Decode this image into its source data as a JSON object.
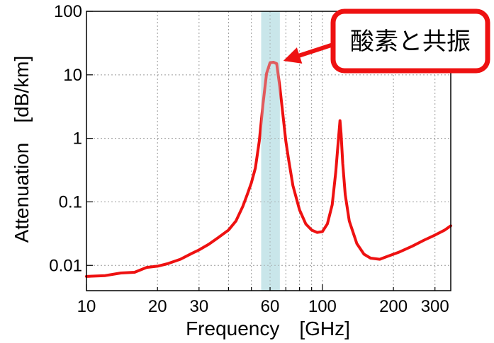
{
  "chart_data": {
    "type": "line",
    "xlabel": "Frequency　[GHz]",
    "ylabel": "Attenuation　[dB/km]",
    "xscale": "log",
    "yscale": "log",
    "xlim": [
      10,
      350
    ],
    "ylim": [
      0.004,
      100
    ],
    "grid": true,
    "x_tick_labels": [
      {
        "value": 10,
        "label": "10"
      },
      {
        "value": 20,
        "label": "20"
      },
      {
        "value": 30,
        "label": "30"
      },
      {
        "value": 60,
        "label": "60"
      },
      {
        "value": 100,
        "label": "100"
      },
      {
        "value": 200,
        "label": "200"
      },
      {
        "value": 300,
        "label": "300"
      }
    ],
    "y_tick_labels": [
      {
        "value": 0.01,
        "label": "0.01"
      },
      {
        "value": 0.1,
        "label": "0.1"
      },
      {
        "value": 1,
        "label": "1"
      },
      {
        "value": 10,
        "label": "10"
      },
      {
        "value": 100,
        "label": "100"
      }
    ],
    "highlight_band": {
      "x_range": [
        55,
        66
      ],
      "color": "#c9e6ea"
    },
    "series": [
      {
        "color": "#ee1111",
        "points": [
          [
            10,
            0.0067
          ],
          [
            12,
            0.0069
          ],
          [
            14,
            0.0076
          ],
          [
            16,
            0.0078
          ],
          [
            18,
            0.0093
          ],
          [
            20,
            0.0097
          ],
          [
            22,
            0.0106
          ],
          [
            25,
            0.0125
          ],
          [
            28,
            0.0155
          ],
          [
            30,
            0.0175
          ],
          [
            33,
            0.0215
          ],
          [
            36,
            0.027
          ],
          [
            40,
            0.036
          ],
          [
            43,
            0.05
          ],
          [
            46,
            0.085
          ],
          [
            48,
            0.13
          ],
          [
            50,
            0.2
          ],
          [
            52,
            0.34
          ],
          [
            54,
            0.9
          ],
          [
            56,
            3.5
          ],
          [
            58,
            10.5
          ],
          [
            60,
            15.5
          ],
          [
            62,
            15.8
          ],
          [
            64,
            15.0
          ],
          [
            66,
            6.5
          ],
          [
            68,
            2.4
          ],
          [
            70,
            0.9
          ],
          [
            72,
            0.45
          ],
          [
            75,
            0.18
          ],
          [
            80,
            0.075
          ],
          [
            85,
            0.045
          ],
          [
            90,
            0.036
          ],
          [
            95,
            0.033
          ],
          [
            100,
            0.034
          ],
          [
            105,
            0.045
          ],
          [
            110,
            0.09
          ],
          [
            114,
            0.3
          ],
          [
            117,
            1.0
          ],
          [
            118.75,
            1.9
          ],
          [
            120,
            1.2
          ],
          [
            122,
            0.4
          ],
          [
            125,
            0.13
          ],
          [
            130,
            0.05
          ],
          [
            140,
            0.022
          ],
          [
            150,
            0.015
          ],
          [
            160,
            0.013
          ],
          [
            175,
            0.0125
          ],
          [
            190,
            0.014
          ],
          [
            210,
            0.016
          ],
          [
            240,
            0.02
          ],
          [
            270,
            0.025
          ],
          [
            300,
            0.03
          ],
          [
            330,
            0.036
          ],
          [
            350,
            0.042
          ]
        ]
      }
    ],
    "annotation": {
      "text": "酸素と共振",
      "points_to": [
        62,
        15.8
      ],
      "box_border_color": "#ee1111",
      "arrow_color": "#ee1111"
    }
  }
}
